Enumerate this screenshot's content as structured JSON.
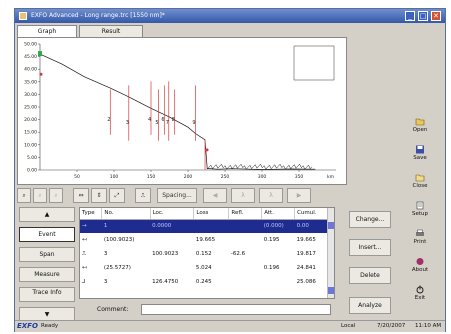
{
  "window": {
    "title": "EXFO Advanced - Long range.trc [1550 nm]*",
    "minimize": "_",
    "maximize": "□",
    "close": "✕"
  },
  "tabs": [
    {
      "label": "Graph",
      "active": true
    },
    {
      "label": "Result",
      "active": false
    }
  ],
  "chart_data": {
    "type": "line",
    "x_unit": "km",
    "y_ticks": [
      "50.00",
      "45.00",
      "40.00",
      "35.00",
      "30.00",
      "25.00",
      "20.00",
      "15.00",
      "10.00",
      "5.00",
      "0.00"
    ],
    "x_ticks": [
      "50",
      "100",
      "150",
      "200",
      "250",
      "300",
      "350"
    ],
    "xlim": [
      0,
      400
    ],
    "ylim": [
      0,
      50
    ],
    "trace": {
      "x": [
        0,
        30,
        60,
        95,
        120,
        150,
        175,
        200,
        210,
        223,
        226,
        240,
        260,
        300,
        340,
        372
      ],
      "y": [
        46,
        42,
        37,
        32.5,
        29,
        24.5,
        21,
        17,
        14.5,
        12,
        0.6,
        0.3,
        0.5,
        0.2,
        0.4,
        0.3
      ]
    },
    "event_markers": [
      {
        "x": 95,
        "label": "2"
      },
      {
        "x": 120,
        "label": "3"
      },
      {
        "x": 150,
        "label": "4"
      },
      {
        "x": 160,
        "label": "5"
      },
      {
        "x": 168,
        "label": "6"
      },
      {
        "x": 174,
        "label": "7"
      },
      {
        "x": 182,
        "label": "8"
      },
      {
        "x": 210,
        "label": "9"
      }
    ],
    "grid": false
  },
  "toolbar": {
    "spacing_label": "Spacing..."
  },
  "side_nav": [
    "Event",
    "Span",
    "Measure",
    "Trace Info"
  ],
  "table": {
    "columns": [
      "Type",
      "No.",
      "Loc.",
      "Loss",
      "Refl.",
      "Att.",
      "Cumul."
    ],
    "rows": [
      {
        "type": "→",
        "no": "1",
        "loc": "0.0000",
        "loss": "",
        "refl": "",
        "att": "(0.000)",
        "cumul": "0.00",
        "selected": true
      },
      {
        "type": "↤",
        "no": "(100.9023)",
        "loc": "",
        "loss": "19.665",
        "refl": "",
        "att": "0.195",
        "cumul": "19.665",
        "selected": false
      },
      {
        "type": "⎍",
        "no": "3",
        "loc": "100.9023",
        "loss": "0.152",
        "refl": "-62.6",
        "att": "",
        "cumul": "19.817",
        "selected": false
      },
      {
        "type": "↤",
        "no": "(25.5727)",
        "loc": "",
        "loss": "5.024",
        "refl": "",
        "att": "0.196",
        "cumul": "24.841",
        "selected": false
      },
      {
        "type": "⅃",
        "no": "3",
        "loc": "126.4750",
        "loss": "0.245",
        "refl": "",
        "att": "",
        "cumul": "25.086",
        "selected": false
      }
    ]
  },
  "comment_label": "Comment:",
  "actions": [
    "Change...",
    "Insert...",
    "Delete",
    "Analyze"
  ],
  "right_panel": [
    {
      "label": "Open",
      "icon": "open-icon"
    },
    {
      "label": "Save",
      "icon": "save-icon"
    },
    {
      "label": "Close",
      "icon": "close-file-icon"
    },
    {
      "label": "Setup",
      "icon": "setup-icon"
    },
    {
      "label": "Print",
      "icon": "print-icon"
    },
    {
      "label": "About",
      "icon": "about-icon"
    },
    {
      "label": "Exit",
      "icon": "exit-icon"
    }
  ],
  "status": {
    "logo": "EXFO",
    "ready": "Ready",
    "location": "Local",
    "date": "7/20/2007",
    "time": "11:10 AM"
  },
  "colors": {
    "titlebar": "#3558a8",
    "selected_row": "#1f2c8f",
    "marker": "#d33a3a",
    "trace": "#111111",
    "start_marker": "#2fa84f"
  }
}
